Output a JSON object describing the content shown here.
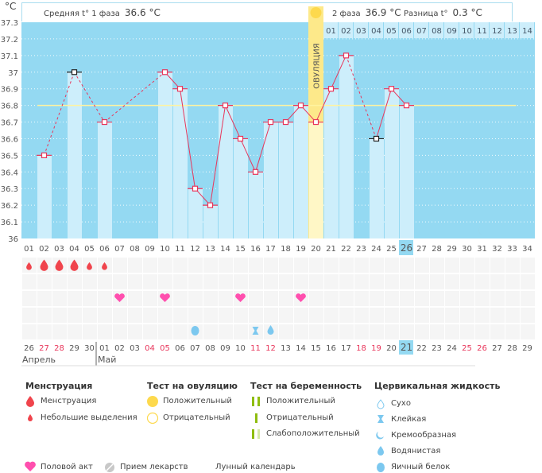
{
  "chart_data": {
    "type": "bar",
    "title": "",
    "ylabel": "°C",
    "ylim": [
      36,
      37.3
    ],
    "yticks": [
      "36",
      "36.1",
      "36.2",
      "36.3",
      "36.4",
      "36.5",
      "36.6",
      "36.7",
      "36.8",
      "36.9",
      "37",
      "37.1",
      "37.2",
      "37.3"
    ],
    "cycle_days": [
      "01",
      "02",
      "03",
      "04",
      "05",
      "06",
      "07",
      "08",
      "09",
      "10",
      "11",
      "12",
      "13",
      "14",
      "15",
      "16",
      "17",
      "18",
      "19",
      "20",
      "21",
      "22",
      "23",
      "24",
      "25",
      "26",
      "27",
      "28",
      "29",
      "30",
      "31",
      "32",
      "33",
      "34"
    ],
    "phase2_days": [
      "01",
      "02",
      "03",
      "04",
      "05",
      "06",
      "07",
      "08",
      "09",
      "10",
      "11",
      "12",
      "13",
      "14"
    ],
    "calendar_dates": [
      "26",
      "27",
      "28",
      "29",
      "30",
      "01",
      "02",
      "03",
      "04",
      "05",
      "06",
      "07",
      "08",
      "09",
      "10",
      "11",
      "12",
      "13",
      "14",
      "15",
      "16",
      "17",
      "18",
      "19",
      "20",
      "21",
      "22",
      "23",
      "24",
      "25",
      "26",
      "27",
      "28",
      "29"
    ],
    "weekend_date_indices": [
      1,
      2,
      8,
      9,
      15,
      16,
      22,
      23,
      29,
      30
    ],
    "months": [
      {
        "label": "Апрель",
        "start_index": 0
      },
      {
        "label": "Май",
        "start_index": 5
      }
    ],
    "today_cycle_day": 26,
    "today_date": "21",
    "ovulation_day": 20,
    "ovulation_label": "ОВУЛЯЦИЯ",
    "coverline": 36.8,
    "coverline_until_day": 33,
    "series": [
      {
        "name": "Базальная температура",
        "values": [
          null,
          36.5,
          null,
          37.0,
          null,
          36.7,
          null,
          null,
          null,
          37.0,
          36.9,
          36.3,
          36.2,
          36.8,
          36.6,
          36.4,
          36.7,
          36.7,
          36.8,
          36.7,
          36.9,
          37.1,
          null,
          36.6,
          36.9,
          36.8,
          null,
          null,
          null,
          null,
          null,
          null,
          null,
          null
        ]
      }
    ],
    "excluded_points_days": [
      4,
      24
    ],
    "dashed_segments": [
      [
        2,
        4
      ],
      [
        4,
        6
      ],
      [
        6,
        10
      ],
      [
        22,
        24
      ]
    ],
    "menstruation": {
      "heavy_days": [
        2,
        3,
        4
      ],
      "light_days": [
        1,
        5,
        6
      ]
    },
    "intercourse_days": [
      7,
      10,
      15,
      19
    ],
    "cervical_fluid": [
      {
        "day": 12,
        "type": "egg_white"
      },
      {
        "day": 16,
        "type": "sticky"
      },
      {
        "day": 17,
        "type": "watery"
      }
    ],
    "moon_day": 31
  },
  "header": {
    "phase1_label": "Средняя t° 1 фаза",
    "phase1_value": "36.6 °C",
    "phase2_label": "2 фаза",
    "phase2_value": "36.9 °C",
    "diff_label": "Разница t°",
    "diff_value": "0.3 °C",
    "unit": "°C"
  },
  "legend": {
    "menstruation": {
      "title": "Менструация",
      "items": [
        "Менструация",
        "Небольшие выделения"
      ]
    },
    "ovulation_test": {
      "title": "Тест на овуляцию",
      "items": [
        "Положительный",
        "Отрицательный"
      ]
    },
    "pregnancy_test": {
      "title": "Тест на беременность",
      "items": [
        "Положительный",
        "Отрицательный",
        "Слабоположительный"
      ]
    },
    "cervical": {
      "title": "Цервикальная жидкость",
      "items": [
        "Сухо",
        "Клейкая",
        "Кремообразная",
        "Водянистая",
        "Яичный белок"
      ]
    },
    "bottom": [
      "Половой акт",
      "Прием лекарств",
      "Лунный календарь"
    ]
  },
  "colors": {
    "plot_bg": "#94d9f2",
    "bar": "#cdeefb",
    "line": "#e8365b",
    "coverline": "#fff3a0",
    "ovulation": "#fde98a",
    "heart": "#ff4fae",
    "drop": "#f0444c",
    "fluid": "#7cc8ef",
    "moon": "#f7941d",
    "weekend": "#e8365b"
  }
}
